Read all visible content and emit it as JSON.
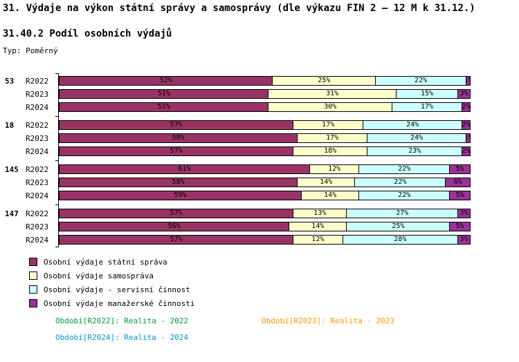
{
  "header": {
    "title": "31. Výdaje na výkon státní správy a samosprávy (dle výkazu FIN 2 – 12 M k 31.12.)",
    "subtitle": "31.40.2 Podíl osobních výdajů",
    "type_label": "Typ: Poměrný"
  },
  "chart_data": {
    "type": "bar",
    "orientation": "horizontal",
    "stacked": true,
    "unit": "%",
    "xlim": [
      0,
      100
    ],
    "grid": false,
    "legend_position": "bottom-left",
    "series_names": [
      "Osobní výdaje státní správa",
      "Osobní výdaje samospráva",
      "Osobní výdaje - servisní činnost",
      "Osobní výdaje manažerské činnosti"
    ],
    "colors": [
      "#993366",
      "#FFFFCC",
      "#CCFFFF",
      "#993399"
    ],
    "groups": [
      {
        "label": "53",
        "rows": [
          {
            "label": "R2022",
            "values": [
              52,
              25,
              22,
              1
            ]
          },
          {
            "label": "R2023",
            "values": [
              51,
              31,
              15,
              3
            ]
          },
          {
            "label": "R2024",
            "values": [
              51,
              30,
              17,
              2
            ]
          }
        ]
      },
      {
        "label": "18",
        "rows": [
          {
            "label": "R2022",
            "values": [
              57,
              17,
              24,
              2
            ]
          },
          {
            "label": "R2023",
            "values": [
              58,
              17,
              24,
              1
            ]
          },
          {
            "label": "R2024",
            "values": [
              57,
              18,
              23,
              2
            ]
          }
        ]
      },
      {
        "label": "145",
        "rows": [
          {
            "label": "R2022",
            "values": [
              61,
              12,
              22,
              5
            ]
          },
          {
            "label": "R2023",
            "values": [
              58,
              14,
              22,
              6
            ]
          },
          {
            "label": "R2024",
            "values": [
              59,
              14,
              22,
              5
            ]
          }
        ]
      },
      {
        "label": "147",
        "rows": [
          {
            "label": "R2022",
            "values": [
              57,
              13,
              27,
              3
            ]
          },
          {
            "label": "R2023",
            "values": [
              56,
              14,
              25,
              5
            ]
          },
          {
            "label": "R2024",
            "values": [
              57,
              12,
              28,
              3
            ]
          }
        ]
      }
    ]
  },
  "footer": {
    "periods": [
      {
        "label": "Období[R2022]:",
        "value": "Realita - 2022",
        "color": "#009933"
      },
      {
        "label": "Období[R2023]:",
        "value": "Realita - 2023",
        "color": "#FF9900"
      },
      {
        "label": "Období[R2024]:",
        "value": "Realita - 2024",
        "color": "#0099CC"
      }
    ]
  }
}
